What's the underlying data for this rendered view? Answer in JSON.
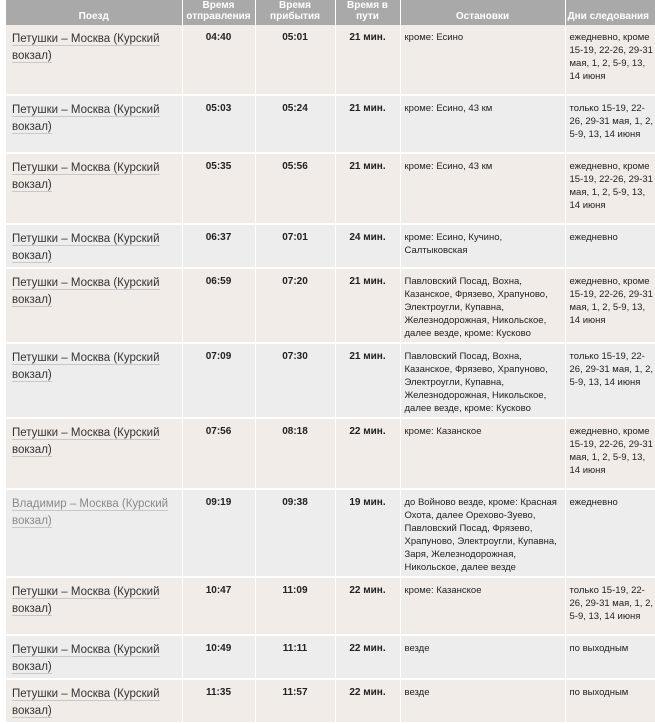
{
  "headers": {
    "train": "Поезд",
    "departure": "Время отправления",
    "arrival": "Время прибытия",
    "duration": "Время в пути",
    "stops": "Остановки",
    "days": "Дни следования"
  },
  "colors": {
    "header_bg": "#a9a9a9",
    "row_odd": "#f2ece8",
    "row_even": "#ededed"
  },
  "rows": [
    {
      "train": "Петушки – Москва (Курский вокзал)",
      "dep": "04:40",
      "arr": "05:01",
      "dur": "21 мин.",
      "stops": "кроме: Есино",
      "days": "ежедневно, кроме 15-19, 22-26, 29-31 мая, 1, 2, 5-9, 13, 14 июня"
    },
    {
      "train": "Петушки – Москва (Курский вокзал)",
      "dep": "05:03",
      "arr": "05:24",
      "dur": "21 мин.",
      "stops": "кроме: Есино, 43 км",
      "days": "только 15-19, 22-26, 29-31 мая, 1, 2, 5-9, 13, 14 июня"
    },
    {
      "train": "Петушки – Москва (Курский вокзал)",
      "dep": "05:35",
      "arr": "05:56",
      "dur": "21 мин.",
      "stops": "кроме: Есино, 43 км",
      "days": "ежедневно, кроме 15-19, 22-26, 29-31 мая, 1, 2, 5-9, 13, 14 июня"
    },
    {
      "train": "Петушки – Москва (Курский вокзал)",
      "dep": "06:37",
      "arr": "07:01",
      "dur": "24 мин.",
      "stops": "кроме: Есино, Кучино, Салтыковская",
      "days": "ежедневно"
    },
    {
      "train": "Петушки – Москва (Курский вокзал)",
      "dep": "06:59",
      "arr": "07:20",
      "dur": "21 мин.",
      "stops": "Павловский Посад, Вохна, Казанское, Фрязево, Храпуново, Электроугли, Купавна, Железнодорожная, Никольское, далее везде, кроме: Кусково",
      "days": "ежедневно, кроме 15-19, 22-26, 29-31 мая, 1, 2, 5-9, 13, 14 июня"
    },
    {
      "train": "Петушки – Москва (Курский вокзал)",
      "dep": "07:09",
      "arr": "07:30",
      "dur": "21 мин.",
      "stops": "Павловский Посад, Вохна, Казанское, Фрязево, Храпуново, Электроугли, Купавна, Железнодорожная, Никольское, далее везде, кроме: Кусково",
      "days": "только 15-19, 22-26, 29-31 мая, 1, 2, 5-9, 13, 14 июня"
    },
    {
      "train": "Петушки – Москва (Курский вокзал)",
      "dep": "07:56",
      "arr": "08:18",
      "dur": "22 мин.",
      "stops": "кроме: Казанское",
      "days": "ежедневно, кроме 15-19, 22-26, 29-31 мая, 1, 2, 5-9, 13, 14 июня"
    },
    {
      "train": "Владимир – Москва (Курский вокзал)",
      "dep": "09:19",
      "arr": "09:38",
      "dur": "19 мин.",
      "stops": "до Войново везде, кроме: Красная Охота, далее Орехово-Зуево, Павловский Посад, Фрязево, Храпуново, Электроугли, Купавна, Заря, Железнодорожная, Никольское, далее везде",
      "days": "ежедневно"
    },
    {
      "train": "Петушки – Москва (Курский вокзал)",
      "dep": "10:47",
      "arr": "11:09",
      "dur": "22 мин.",
      "stops": "кроме: Казанское",
      "days": "только 15-19, 22-26, 29-31 мая, 1, 2, 5-9, 13, 14 июня"
    },
    {
      "train": "Петушки – Москва (Курский вокзал)",
      "dep": "10:49",
      "arr": "11:11",
      "dur": "22 мин.",
      "stops": "везде",
      "days": "по выходным"
    },
    {
      "train": "Петушки – Москва (Курский вокзал)",
      "dep": "11:35",
      "arr": "11:57",
      "dur": "22 мин.",
      "stops": "везде",
      "days": "по выходным"
    }
  ]
}
